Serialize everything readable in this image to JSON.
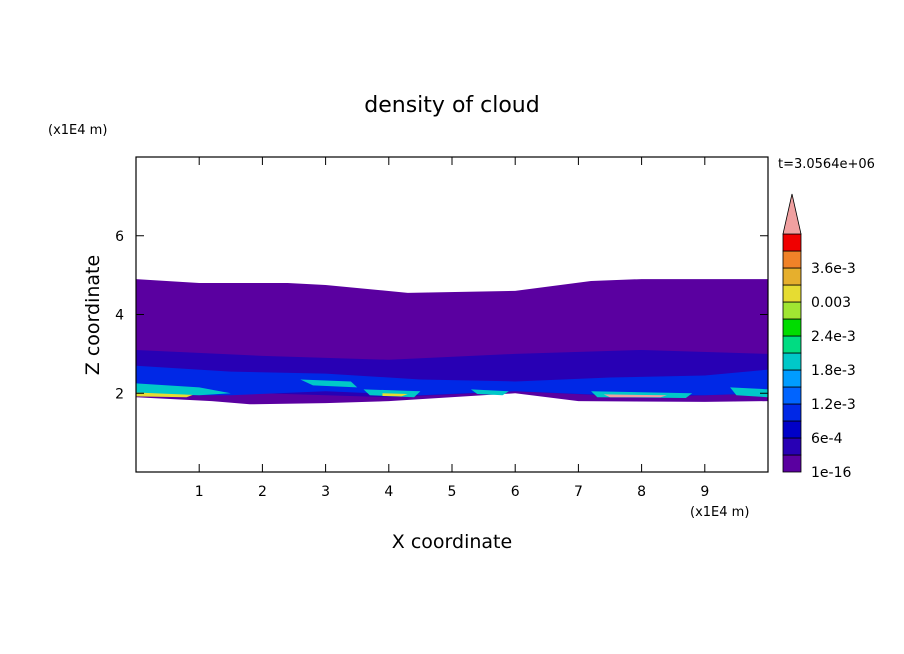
{
  "chart_data": {
    "type": "contour",
    "title": "density of cloud",
    "x_label": "X coordinate",
    "y_label": "Z coordinate",
    "x_unit": "(x1E4 m)",
    "y_unit": "(x1E4 m)",
    "annotation": "t=3.0564e+06",
    "xlim": [
      0,
      10
    ],
    "ylim": [
      0,
      8
    ],
    "xticks": [
      1,
      2,
      3,
      4,
      5,
      6,
      7,
      8,
      9
    ],
    "yticks": [
      2,
      4,
      6
    ],
    "colorbar": {
      "ticks": [
        {
          "value": 1e-16,
          "label": "1e-16"
        },
        {
          "value": 0.0006,
          "label": "6e-4"
        },
        {
          "value": 0.0012,
          "label": "1.2e-3"
        },
        {
          "value": 0.0018,
          "label": "1.8e-3"
        },
        {
          "value": 0.0024,
          "label": "2.4e-3"
        },
        {
          "value": 0.003,
          "label": "0.003"
        },
        {
          "value": 0.0036,
          "label": "3.6e-3"
        }
      ],
      "colors": [
        "#5a00a0",
        "#2800b4",
        "#0000c8",
        "#0028e6",
        "#0064ff",
        "#009cff",
        "#00c8c8",
        "#00dc82",
        "#00dc00",
        "#a0e632",
        "#e6dc32",
        "#e6af2d",
        "#f08228",
        "#f00000",
        "#f0a0a0"
      ]
    },
    "regions": [
      {
        "level": 0,
        "x": [
          0,
          1,
          2.4,
          3,
          4.3,
          6,
          7.2,
          8,
          10,
          10,
          9,
          7,
          6,
          4,
          3,
          1.8,
          1.2,
          0
        ],
        "z": [
          4.9,
          4.8,
          4.8,
          4.75,
          4.55,
          4.6,
          4.85,
          4.9,
          4.9,
          1.8,
          1.78,
          1.8,
          2.0,
          1.8,
          1.75,
          1.72,
          1.8,
          1.9
        ]
      },
      {
        "level": 1,
        "x": [
          0,
          2,
          4,
          6,
          8,
          10,
          10,
          8,
          6,
          4,
          2,
          0
        ],
        "z": [
          3.1,
          2.95,
          2.85,
          3.0,
          3.1,
          3.0,
          2.0,
          1.9,
          2.05,
          1.9,
          2.0,
          1.95
        ]
      },
      {
        "level": 3,
        "x": [
          0,
          1.5,
          3,
          4.5,
          6,
          7.5,
          9,
          10,
          10,
          9,
          7.5,
          6,
          4.5,
          3,
          1.5,
          0
        ],
        "z": [
          2.7,
          2.55,
          2.5,
          2.35,
          2.3,
          2.4,
          2.45,
          2.6,
          2.0,
          1.95,
          1.95,
          2.05,
          1.95,
          2.05,
          1.95,
          1.95
        ]
      },
      {
        "level": 6,
        "x": [
          0,
          1,
          1.5,
          1,
          0
        ],
        "z": [
          2.25,
          2.15,
          2.0,
          1.95,
          2.0
        ]
      },
      {
        "level": 6,
        "x": [
          2.6,
          3.4,
          3.5,
          2.8
        ],
        "z": [
          2.35,
          2.3,
          2.15,
          2.2
        ]
      },
      {
        "level": 6,
        "x": [
          3.6,
          4.5,
          4.4,
          3.7
        ],
        "z": [
          2.1,
          2.05,
          1.9,
          1.95
        ]
      },
      {
        "level": 6,
        "x": [
          5.3,
          5.9,
          5.8,
          5.4
        ],
        "z": [
          2.1,
          2.05,
          1.95,
          1.98
        ]
      },
      {
        "level": 6,
        "x": [
          7.2,
          8.8,
          8.7,
          7.3
        ],
        "z": [
          2.05,
          2.0,
          1.88,
          1.9
        ]
      },
      {
        "level": 6,
        "x": [
          9.4,
          10,
          10,
          9.5
        ],
        "z": [
          2.15,
          2.1,
          1.9,
          1.95
        ]
      },
      {
        "level": 10,
        "x": [
          0,
          0.9,
          0.8,
          0
        ],
        "z": [
          2.02,
          1.96,
          1.9,
          1.92
        ]
      },
      {
        "level": 10,
        "x": [
          3.9,
          4.3,
          4.2,
          3.9
        ],
        "z": [
          2.0,
          1.98,
          1.92,
          1.93
        ]
      },
      {
        "level": 14,
        "x": [
          7.4,
          8.4,
          8.3,
          7.5
        ],
        "z": [
          1.97,
          1.95,
          1.9,
          1.9
        ]
      }
    ]
  }
}
